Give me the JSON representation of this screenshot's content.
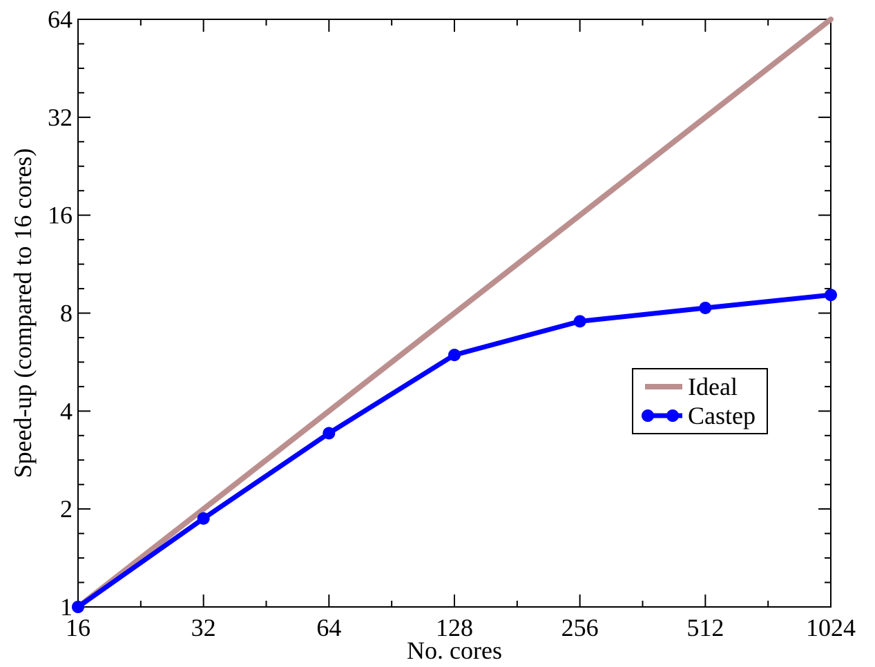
{
  "chart_data": {
    "type": "line",
    "title": "",
    "xlabel": "No. cores",
    "ylabel": "Speed-up (compared to 16 cores)",
    "xscale": "log2",
    "yscale": "log2",
    "xlim": [
      16,
      1024
    ],
    "ylim": [
      1,
      64
    ],
    "xticks": [
      "16",
      "32",
      "64",
      "128",
      "256",
      "512",
      "1024"
    ],
    "yticks": [
      "1",
      "2",
      "4",
      "8",
      "16",
      "32",
      "64"
    ],
    "x": [
      16,
      32,
      64,
      128,
      256,
      512,
      1024
    ],
    "series": [
      {
        "name": "Ideal",
        "color": "#bc8f8f",
        "marker": "none",
        "x": [
          16,
          1024
        ],
        "values": [
          1,
          64
        ]
      },
      {
        "name": "Castep",
        "color": "#0000ff",
        "marker": "circle",
        "x": [
          16,
          32,
          64,
          128,
          256,
          512,
          1024
        ],
        "values": [
          1.0,
          1.87,
          3.42,
          5.95,
          7.55,
          8.3,
          9.1
        ]
      }
    ],
    "grid": false,
    "legend_position": "right-center"
  }
}
